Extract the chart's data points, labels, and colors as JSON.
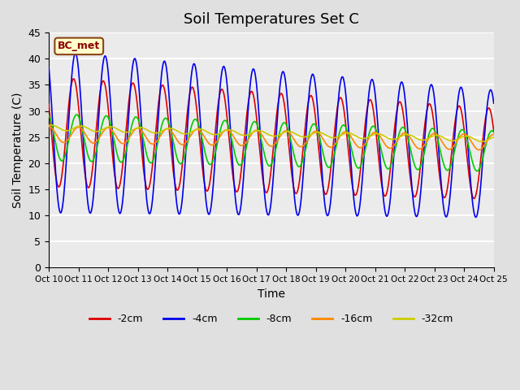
{
  "title": "Soil Temperatures Set C",
  "xlabel": "Time",
  "ylabel": "Soil Temperature (C)",
  "ylim": [
    0,
    45
  ],
  "annotation": "BC_met",
  "legend_labels": [
    "-2cm",
    "-4cm",
    "-8cm",
    "-16cm",
    "-32cm"
  ],
  "legend_colors": [
    "#dd0000",
    "#0000ee",
    "#00cc00",
    "#ff8800",
    "#cccc00"
  ],
  "x_tick_labels": [
    "Oct 10",
    "Oct 11",
    "Oct 12",
    "Oct 13",
    "Oct 14",
    "Oct 15",
    "Oct 16",
    "Oct 17",
    "Oct 18",
    "Oct 19",
    "Oct 20",
    "Oct 21",
    "Oct 22",
    "Oct 23",
    "Oct 24",
    "Oct 25"
  ],
  "background_color": "#e0e0e0",
  "plot_bg_color": "#ebebeb",
  "grid_color": "#ffffff",
  "title_fontsize": 13,
  "label_fontsize": 10,
  "yticks": [
    0,
    5,
    10,
    15,
    20,
    25,
    30,
    35,
    40,
    45
  ]
}
